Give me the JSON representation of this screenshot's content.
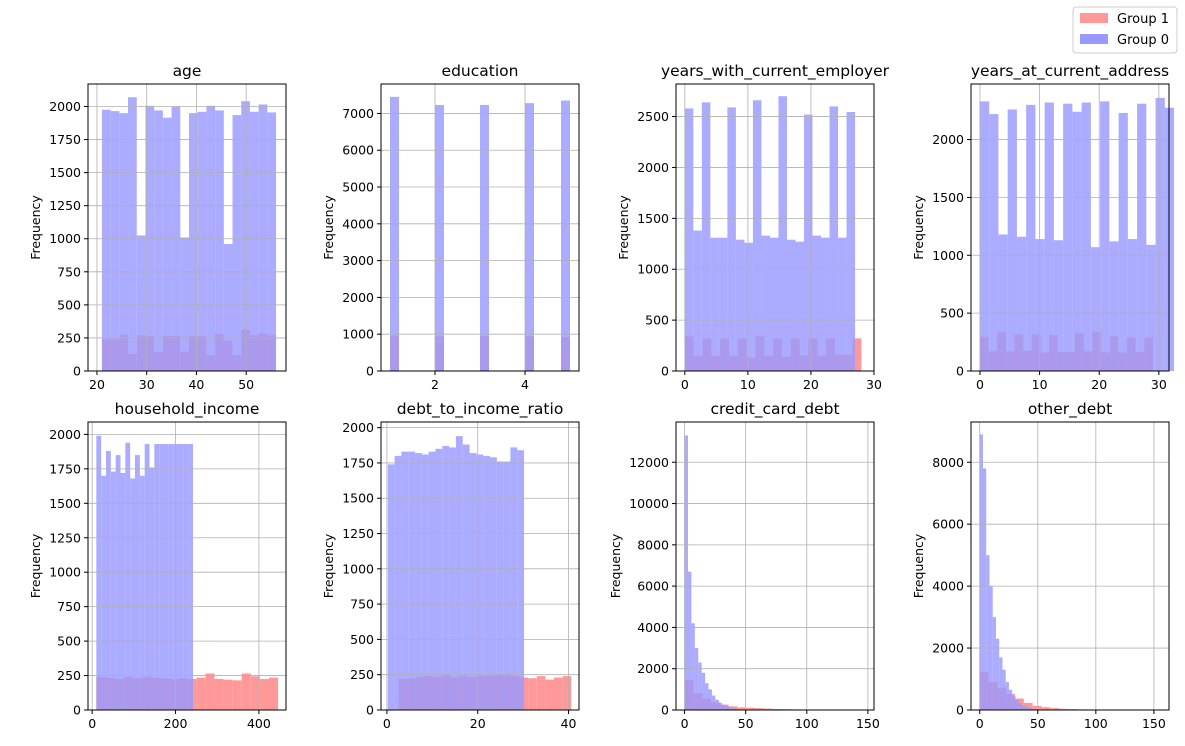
{
  "legend": {
    "placement": "top-right",
    "entries": [
      {
        "name": "Group 1",
        "color": "#ff9999"
      },
      {
        "name": "Group 0",
        "color": "#9999ff"
      }
    ]
  },
  "colors": {
    "group1": "#ff9999",
    "group0": "#9999ff",
    "overlap": "#9955bb",
    "grid": "#b0b0b0"
  },
  "chart_data": [
    {
      "type": "bar",
      "title": "age",
      "ylabel": "Frequency",
      "xlim": [
        18.2,
        58.0
      ],
      "ylim": [
        0,
        2170
      ],
      "xticks": [
        20,
        30,
        40,
        50
      ],
      "yticks": [
        0,
        250,
        500,
        750,
        1000,
        1250,
        1500,
        1750,
        2000
      ],
      "series": [
        {
          "name": "Group 0",
          "bin_start": 21,
          "bin_width": 1.75,
          "values": [
            1975,
            1965,
            1950,
            2070,
            1025,
            2005,
            1970,
            1915,
            2000,
            1010,
            1950,
            1960,
            2005,
            1970,
            960,
            1935,
            2040,
            1960,
            2015,
            1955
          ]
        },
        {
          "name": "Group 1",
          "bin_start": 21,
          "bin_width": 1.75,
          "values": [
            240,
            240,
            275,
            130,
            270,
            265,
            145,
            265,
            265,
            145,
            265,
            265,
            120,
            280,
            230,
            120,
            310,
            270,
            285,
            270
          ]
        }
      ]
    },
    {
      "type": "bar",
      "title": "education",
      "ylabel": "Frequency",
      "xlim": [
        0.8,
        5.2
      ],
      "ylim": [
        0,
        7800
      ],
      "xticks": [
        2,
        4
      ],
      "yticks": [
        0,
        1000,
        2000,
        3000,
        4000,
        5000,
        6000,
        7000
      ],
      "series": [
        {
          "name": "Group 0",
          "bin_start": 1,
          "bin_width": 0.2,
          "values": [
            7450,
            0,
            0,
            0,
            0,
            7230,
            0,
            0,
            0,
            0,
            7230,
            0,
            0,
            0,
            0,
            7280,
            0,
            0,
            0,
            7350
          ]
        },
        {
          "name": "Group 1",
          "bin_start": 1,
          "bin_width": 0.2,
          "values": [
            960,
            0,
            0,
            0,
            0,
            940,
            0,
            0,
            0,
            0,
            950,
            0,
            0,
            0,
            0,
            940,
            0,
            0,
            0,
            920
          ]
        }
      ]
    },
    {
      "type": "bar",
      "title": "years_with_current_employer",
      "ylabel": "Frequency",
      "xlim": [
        -1.4,
        30.0
      ],
      "ylim": [
        0,
        2820
      ],
      "xticks": [
        0,
        10,
        20,
        30
      ],
      "yticks": [
        0,
        500,
        1000,
        1500,
        2000,
        2500
      ],
      "series": [
        {
          "name": "Group 0",
          "bin_start": 0,
          "bin_width": 1.35,
          "values": [
            2580,
            1380,
            2640,
            1310,
            1310,
            2590,
            1290,
            1260,
            2660,
            1330,
            1310,
            2700,
            1290,
            1270,
            2520,
            1330,
            1310,
            2600,
            1310,
            2545
          ]
        },
        {
          "name": "Group 1",
          "bin_start": 0,
          "bin_width": 1.4,
          "values": [
            340,
            150,
            320,
            150,
            320,
            150,
            320,
            130,
            340,
            150,
            320,
            140,
            320,
            150,
            320,
            150,
            320,
            160,
            160,
            320
          ]
        }
      ]
    },
    {
      "type": "bar",
      "title": "years_at_current_address",
      "ylabel": "Frequency",
      "xlim": [
        -1.5,
        31.7
      ],
      "ylim": [
        0,
        2480
      ],
      "xticks": [
        0,
        10,
        20,
        30
      ],
      "yticks": [
        0,
        500,
        1000,
        1500,
        2000
      ],
      "series": [
        {
          "name": "Group 0",
          "bin_start": 0,
          "bin_width": 1.55,
          "values": [
            2330,
            2220,
            1180,
            2260,
            1160,
            2300,
            1140,
            2320,
            1130,
            2310,
            2240,
            2320,
            1070,
            2330,
            1120,
            2230,
            1140,
            2310,
            1090,
            2360,
            2275
          ]
        },
        {
          "name": "Group 1",
          "bin_start": 0,
          "bin_width": 1.45,
          "values": [
            295,
            170,
            335,
            170,
            315,
            175,
            315,
            160,
            310,
            165,
            165,
            330,
            170,
            340,
            160,
            300,
            160,
            290,
            165,
            290,
            0
          ]
        }
      ]
    },
    {
      "type": "bar",
      "title": "household_income",
      "ylabel": "Frequency",
      "xlim": [
        -10,
        465
      ],
      "ylim": [
        0,
        2090
      ],
      "xticks": [
        0,
        200,
        400
      ],
      "yticks": [
        0,
        250,
        500,
        750,
        1000,
        1250,
        1500,
        1750,
        2000
      ],
      "series": [
        {
          "name": "Group 0",
          "bin_start": 10,
          "bin_width": 11.6,
          "values": [
            1990,
            1700,
            1880,
            1730,
            1850,
            1720,
            1940,
            1680,
            1850,
            1700,
            1930,
            1760,
            1930,
            1930,
            1930,
            1930,
            1930,
            1930,
            1930,
            1930
          ]
        },
        {
          "name": "Group 1",
          "bin_start": 10,
          "bin_width": 21.8,
          "values": [
            240,
            235,
            225,
            240,
            230,
            240,
            235,
            230,
            225,
            230,
            225,
            235,
            265,
            225,
            220,
            215,
            265,
            245,
            225,
            235
          ]
        }
      ]
    },
    {
      "type": "bar",
      "title": "debt_to_income_ratio",
      "ylabel": "Frequency",
      "xlim": [
        -1.3,
        42.3
      ],
      "ylim": [
        0,
        2040
      ],
      "xticks": [
        0,
        20,
        40
      ],
      "yticks": [
        0,
        250,
        500,
        750,
        1000,
        1250,
        1500,
        1750,
        2000
      ],
      "series": [
        {
          "name": "Group 0",
          "bin_start": 0.2,
          "bin_width": 1.5,
          "values": [
            1740,
            1800,
            1830,
            1830,
            1820,
            1810,
            1830,
            1850,
            1870,
            1860,
            1940,
            1880,
            1820,
            1810,
            1800,
            1790,
            1760,
            1760,
            1860,
            1840
          ]
        },
        {
          "name": "Group 1",
          "bin_start": 2.6,
          "bin_width": 1.9,
          "values": [
            220,
            225,
            235,
            240,
            235,
            245,
            230,
            240,
            235,
            240,
            245,
            245,
            245,
            240,
            230,
            225,
            240,
            215,
            230,
            240
          ]
        }
      ]
    },
    {
      "type": "bar",
      "title": "credit_card_debt",
      "ylabel": "Frequency",
      "xlim": [
        -7,
        155
      ],
      "ylim": [
        0,
        13950
      ],
      "xticks": [
        0,
        50,
        100,
        150
      ],
      "yticks": [
        0,
        2000,
        4000,
        6000,
        8000,
        10000,
        12000
      ],
      "series": [
        {
          "name": "Group 0",
          "bin_start": 0,
          "bin_width": 2.8,
          "values": [
            13300,
            6700,
            4200,
            3000,
            2300,
            1800,
            1300,
            1000,
            700,
            500,
            350,
            250,
            180,
            120,
            80,
            50,
            30,
            20,
            10,
            5
          ]
        },
        {
          "name": "Group 1",
          "bin_start": 0,
          "bin_width": 7.2,
          "values": [
            1450,
            820,
            550,
            380,
            260,
            180,
            130,
            110,
            90,
            70,
            50,
            40,
            30,
            20,
            15,
            10,
            8,
            5,
            3,
            2
          ]
        }
      ]
    },
    {
      "type": "bar",
      "title": "other_debt",
      "ylabel": "Frequency",
      "xlim": [
        -7.5,
        163
      ],
      "ylim": [
        0,
        9300
      ],
      "xticks": [
        0,
        50,
        100,
        150
      ],
      "yticks": [
        0,
        2000,
        4000,
        6000,
        8000
      ],
      "series": [
        {
          "name": "Group 0",
          "bin_start": 0,
          "bin_width": 2.8,
          "values": [
            8900,
            7800,
            5000,
            4000,
            3000,
            2300,
            1700,
            1300,
            900,
            650,
            450,
            320,
            220,
            150,
            100,
            60,
            40,
            25,
            12,
            6
          ]
        },
        {
          "name": "Group 1",
          "bin_start": 0,
          "bin_width": 7.6,
          "values": [
            1230,
            900,
            720,
            520,
            370,
            230,
            130,
            90,
            60,
            40,
            30,
            20,
            15,
            10,
            5,
            3,
            2,
            1,
            1,
            1
          ]
        }
      ]
    }
  ]
}
